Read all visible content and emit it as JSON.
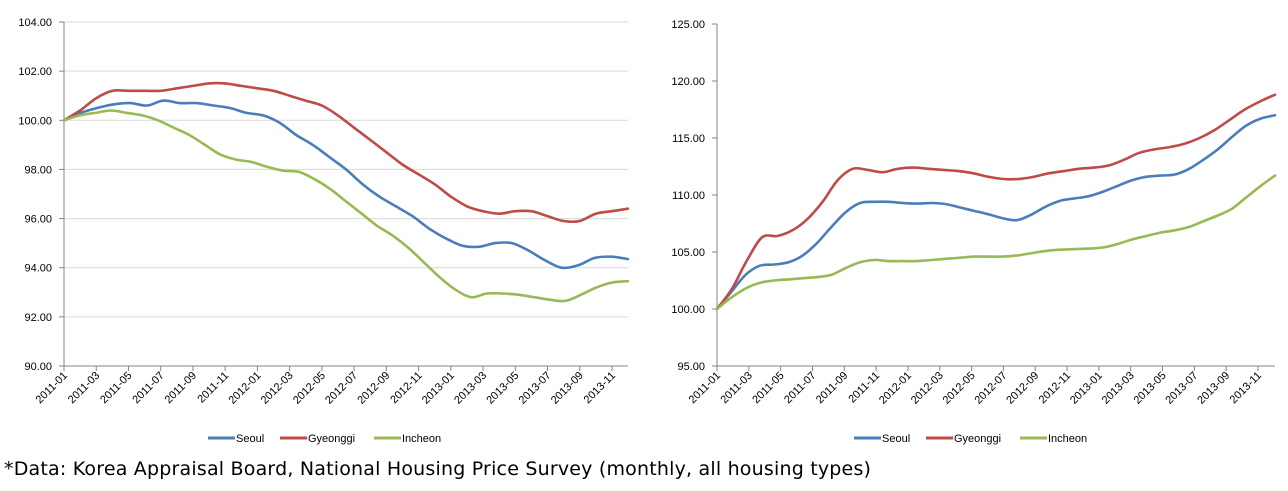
{
  "caption": "*Data: Korea Appraisal Board, National Housing Price Survey (monthly, all housing types)",
  "chart_data": [
    {
      "type": "line",
      "title": "",
      "xlabel": "",
      "ylabel": "",
      "ylim": [
        90,
        104
      ],
      "yticks": [
        "90.00",
        "92.00",
        "94.00",
        "96.00",
        "98.00",
        "100.00",
        "102.00",
        "104.00"
      ],
      "xticks": [
        "2011-01",
        "2011-03",
        "2011-05",
        "2011-07",
        "2011-09",
        "2011-11",
        "2012-01",
        "2012-03",
        "2012-05",
        "2012-07",
        "2012-09",
        "2012-11",
        "2013-01",
        "2013-03",
        "2013-05",
        "2013-07",
        "2013-09",
        "2013-11"
      ],
      "grid": true,
      "legend": "bottom",
      "series": [
        {
          "name": "Seoul",
          "color": "#4a7ebb",
          "values": [
            100.0,
            100.3,
            100.5,
            100.65,
            100.7,
            100.6,
            100.8,
            100.7,
            100.7,
            100.6,
            100.5,
            100.3,
            100.2,
            99.9,
            99.4,
            99.0,
            98.5,
            98.0,
            97.4,
            96.9,
            96.5,
            96.1,
            95.6,
            95.2,
            94.9,
            94.85,
            95.0,
            95.0,
            94.7,
            94.3,
            94.0,
            94.1,
            94.4,
            94.45,
            94.35
          ]
        },
        {
          "name": "Gyeonggi",
          "color": "#be4b48",
          "values": [
            100.0,
            100.4,
            100.9,
            101.2,
            101.2,
            101.2,
            101.2,
            101.3,
            101.4,
            101.5,
            101.5,
            101.4,
            101.3,
            101.2,
            101.0,
            100.8,
            100.6,
            100.2,
            99.7,
            99.2,
            98.7,
            98.2,
            97.8,
            97.4,
            96.9,
            96.5,
            96.3,
            96.2,
            96.3,
            96.3,
            96.1,
            95.9,
            95.9,
            96.2,
            96.3,
            96.4
          ]
        },
        {
          "name": "Incheon",
          "color": "#98b954",
          "values": [
            100.0,
            100.2,
            100.3,
            100.4,
            100.3,
            100.2,
            100.0,
            99.7,
            99.4,
            99.0,
            98.6,
            98.4,
            98.3,
            98.1,
            97.95,
            97.9,
            97.6,
            97.2,
            96.7,
            96.2,
            95.7,
            95.3,
            94.8,
            94.2,
            93.6,
            93.1,
            92.8,
            92.95,
            92.95,
            92.9,
            92.8,
            92.7,
            92.65,
            92.9,
            93.2,
            93.4,
            93.45
          ]
        }
      ]
    },
    {
      "type": "line",
      "title": "",
      "xlabel": "",
      "ylabel": "",
      "ylim": [
        95,
        125
      ],
      "yticks": [
        "95.00",
        "100.00",
        "105.00",
        "110.00",
        "115.00",
        "120.00",
        "125.00"
      ],
      "xticks": [
        "2011-01",
        "2011-03",
        "2011-05",
        "2011-07",
        "2011-09",
        "2011-11",
        "2012-01",
        "2012-03",
        "2012-05",
        "2012-07",
        "2012-09",
        "2012-11",
        "2013-01",
        "2013-03",
        "2013-05",
        "2013-07",
        "2013-09",
        "2013-11"
      ],
      "grid": false,
      "legend": "bottom",
      "series": [
        {
          "name": "Seoul",
          "color": "#4a7ebb",
          "values": [
            100.0,
            101.5,
            103.0,
            103.8,
            103.9,
            104.1,
            104.7,
            105.8,
            107.2,
            108.5,
            109.3,
            109.4,
            109.4,
            109.3,
            109.25,
            109.3,
            109.2,
            108.9,
            108.6,
            108.3,
            107.95,
            107.8,
            108.3,
            109.0,
            109.5,
            109.7,
            109.9,
            110.3,
            110.8,
            111.3,
            111.6,
            111.7,
            111.8,
            112.3,
            113.1,
            114.0,
            115.1,
            116.1,
            116.7,
            117.0
          ]
        },
        {
          "name": "Gyeonggi",
          "color": "#be4b48",
          "values": [
            100.0,
            101.8,
            104.3,
            106.3,
            106.4,
            106.9,
            107.9,
            109.4,
            111.3,
            112.3,
            112.2,
            112.0,
            112.3,
            112.4,
            112.3,
            112.2,
            112.1,
            111.9,
            111.6,
            111.4,
            111.4,
            111.6,
            111.9,
            112.1,
            112.3,
            112.4,
            112.6,
            113.1,
            113.7,
            114.0,
            114.2,
            114.5,
            115.0,
            115.7,
            116.6,
            117.5,
            118.2,
            118.8
          ]
        },
        {
          "name": "Incheon",
          "color": "#98b954",
          "values": [
            100.0,
            101.0,
            101.8,
            102.3,
            102.5,
            102.6,
            102.7,
            102.8,
            103.0,
            103.6,
            104.1,
            104.3,
            104.2,
            104.2,
            104.2,
            104.3,
            104.4,
            104.5,
            104.6,
            104.6,
            104.6,
            104.7,
            104.9,
            105.1,
            105.2,
            105.25,
            105.3,
            105.4,
            105.7,
            106.1,
            106.4,
            106.7,
            106.9,
            107.2,
            107.7,
            108.2,
            108.8,
            109.8,
            110.8,
            111.7
          ]
        }
      ]
    }
  ]
}
